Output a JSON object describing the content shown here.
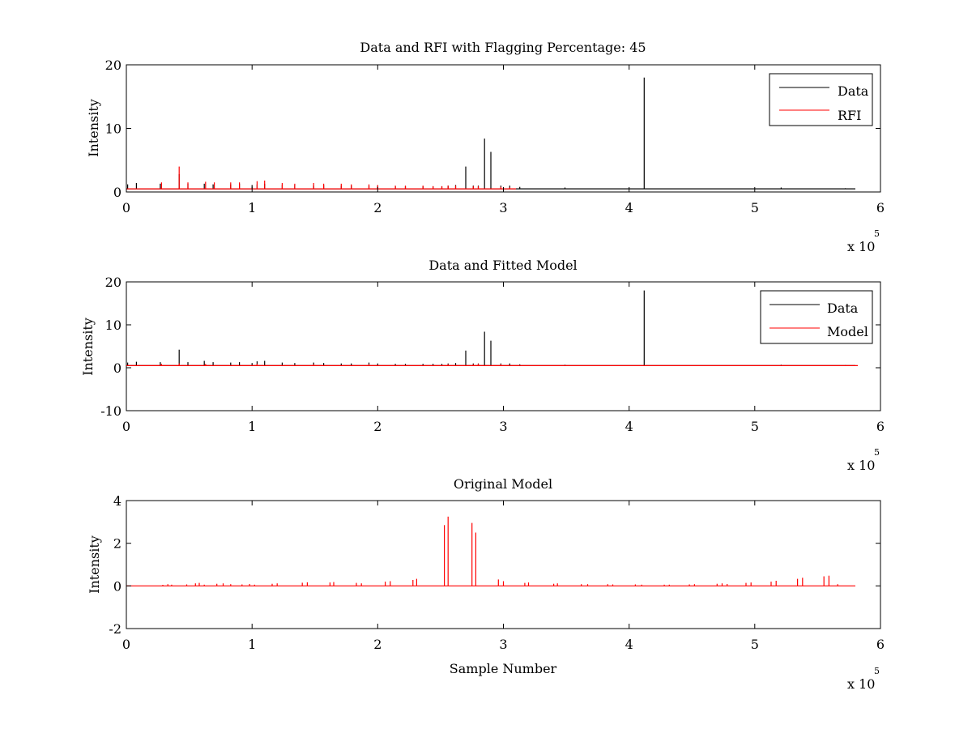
{
  "chart_data": [
    {
      "type": "line",
      "title": "Data and RFI with Flagging Percentage: 45",
      "xlabel": "",
      "ylabel": "Intensity",
      "xlim": [
        0,
        600000
      ],
      "ylim": [
        0,
        20
      ],
      "xticks": [
        0,
        100000,
        200000,
        300000,
        400000,
        500000,
        600000
      ],
      "xtick_labels": [
        "0",
        "1",
        "2",
        "3",
        "4",
        "5",
        "6"
      ],
      "yticks": [
        0,
        10,
        20
      ],
      "ytick_labels": [
        "0",
        "10",
        "20"
      ],
      "x_multiplier": {
        "base": "x 10",
        "exponent": "5"
      },
      "legend_position": "top-right",
      "grid": false,
      "baseline": 0.5,
      "series": [
        {
          "name": "Data",
          "color": "#000000",
          "peaks": [
            [
              1000,
              1.2
            ],
            [
              8000,
              1.4
            ],
            [
              27000,
              1.3
            ],
            [
              42000,
              2.8
            ],
            [
              49000,
              1.3
            ],
            [
              62000,
              1.3
            ],
            [
              69000,
              1.2
            ],
            [
              83000,
              1.2
            ],
            [
              90000,
              1.3
            ],
            [
              100000,
              1.1
            ],
            [
              104000,
              1.2
            ],
            [
              110000,
              1.3
            ],
            [
              124000,
              1.1
            ],
            [
              134000,
              1.1
            ],
            [
              149000,
              1.0
            ],
            [
              157000,
              1.1
            ],
            [
              171000,
              1.0
            ],
            [
              179000,
              1.0
            ],
            [
              193000,
              1.0
            ],
            [
              200000,
              1.0
            ],
            [
              214000,
              0.9
            ],
            [
              222000,
              0.9
            ],
            [
              236000,
              0.9
            ],
            [
              244000,
              0.9
            ],
            [
              251000,
              0.9
            ],
            [
              256000,
              1.0
            ],
            [
              262000,
              1.1
            ],
            [
              270000,
              4.0
            ],
            [
              276000,
              1.0
            ],
            [
              280000,
              1.0
            ],
            [
              285000,
              8.4
            ],
            [
              290000,
              6.3
            ],
            [
              298000,
              1.0
            ],
            [
              305000,
              1.0
            ],
            [
              313000,
              0.8
            ],
            [
              349000,
              0.7
            ],
            [
              412000,
              18.0
            ],
            [
              521000,
              0.7
            ],
            [
              572000,
              0.6
            ]
          ]
        },
        {
          "name": "RFI",
          "color": "#ff0000",
          "peaks": [
            [
              28000,
              1.5
            ],
            [
              42000,
              4.0
            ],
            [
              49000,
              1.5
            ],
            [
              63000,
              1.6
            ],
            [
              70000,
              1.5
            ],
            [
              83000,
              1.5
            ],
            [
              90000,
              1.5
            ],
            [
              104000,
              1.7
            ],
            [
              110000,
              1.8
            ],
            [
              124000,
              1.4
            ],
            [
              134000,
              1.3
            ],
            [
              149000,
              1.4
            ],
            [
              157000,
              1.3
            ],
            [
              171000,
              1.3
            ],
            [
              179000,
              1.2
            ],
            [
              193000,
              1.2
            ],
            [
              200000,
              1.1
            ],
            [
              214000,
              1.0
            ],
            [
              222000,
              1.0
            ],
            [
              236000,
              1.0
            ],
            [
              244000,
              0.9
            ],
            [
              251000,
              0.9
            ],
            [
              256000,
              1.0
            ],
            [
              262000,
              1.0
            ],
            [
              276000,
              0.9
            ],
            [
              280000,
              0.9
            ],
            [
              298000,
              0.8
            ],
            [
              305000,
              0.7
            ]
          ],
          "x_end": 310000
        }
      ]
    },
    {
      "type": "line",
      "title": "Data and Fitted Model",
      "xlabel": "",
      "ylabel": "Intensity",
      "xlim": [
        0,
        600000
      ],
      "ylim": [
        -10,
        20
      ],
      "xticks": [
        0,
        100000,
        200000,
        300000,
        400000,
        500000,
        600000
      ],
      "xtick_labels": [
        "0",
        "1",
        "2",
        "3",
        "4",
        "5",
        "6"
      ],
      "yticks": [
        -10,
        0,
        10,
        20
      ],
      "ytick_labels": [
        "-10",
        "0",
        "10",
        "20"
      ],
      "x_multiplier": {
        "base": "x 10",
        "exponent": "5"
      },
      "legend_position": "top-right",
      "grid": false,
      "baseline": 0.5,
      "series": [
        {
          "name": "Data",
          "color": "#000000",
          "peaks": [
            [
              1000,
              1.2
            ],
            [
              8000,
              1.4
            ],
            [
              27000,
              1.3
            ],
            [
              42000,
              4.2
            ],
            [
              49000,
              1.3
            ],
            [
              62000,
              1.6
            ],
            [
              69000,
              1.3
            ],
            [
              83000,
              1.2
            ],
            [
              90000,
              1.3
            ],
            [
              100000,
              1.1
            ],
            [
              104000,
              1.5
            ],
            [
              110000,
              1.6
            ],
            [
              124000,
              1.2
            ],
            [
              134000,
              1.1
            ],
            [
              149000,
              1.2
            ],
            [
              157000,
              1.1
            ],
            [
              171000,
              1.0
            ],
            [
              179000,
              1.0
            ],
            [
              193000,
              1.2
            ],
            [
              200000,
              1.0
            ],
            [
              214000,
              0.9
            ],
            [
              222000,
              0.9
            ],
            [
              236000,
              0.9
            ],
            [
              244000,
              0.9
            ],
            [
              251000,
              0.9
            ],
            [
              256000,
              1.0
            ],
            [
              262000,
              1.1
            ],
            [
              270000,
              4.0
            ],
            [
              276000,
              1.0
            ],
            [
              280000,
              1.0
            ],
            [
              285000,
              8.4
            ],
            [
              290000,
              6.3
            ],
            [
              298000,
              1.0
            ],
            [
              305000,
              1.0
            ],
            [
              313000,
              0.8
            ],
            [
              349000,
              0.7
            ],
            [
              412000,
              18.0
            ],
            [
              521000,
              0.7
            ],
            [
              572000,
              0.6
            ]
          ]
        },
        {
          "name": "Model",
          "color": "#ff0000",
          "peaks": [
            [
              28000,
              0.9
            ],
            [
              42000,
              1.0
            ],
            [
              63000,
              0.9
            ],
            [
              104000,
              0.9
            ],
            [
              149000,
              0.8
            ],
            [
              193000,
              0.8
            ],
            [
              256000,
              0.8
            ],
            [
              276000,
              0.8
            ],
            [
              280000,
              0.9
            ],
            [
              298000,
              0.8
            ]
          ],
          "x_end": 582000
        }
      ]
    },
    {
      "type": "line",
      "title": "Original Model",
      "xlabel": "Sample Number",
      "ylabel": "Intensity",
      "xlim": [
        0,
        600000
      ],
      "ylim": [
        -2,
        4
      ],
      "xticks": [
        0,
        100000,
        200000,
        300000,
        400000,
        500000,
        600000
      ],
      "xtick_labels": [
        "0",
        "1",
        "2",
        "3",
        "4",
        "5",
        "6"
      ],
      "yticks": [
        -2,
        0,
        2,
        4
      ],
      "ytick_labels": [
        "-2",
        "0",
        "2",
        "4"
      ],
      "x_multiplier": {
        "base": "x 10",
        "exponent": "5"
      },
      "grid": false,
      "baseline": 0,
      "series": [
        {
          "color": "#ff0000",
          "peaks": [
            [
              29000,
              0.05
            ],
            [
              33000,
              0.08
            ],
            [
              36000,
              0.06
            ],
            [
              48000,
              0.07
            ],
            [
              55000,
              0.12
            ],
            [
              58000,
              0.14
            ],
            [
              62000,
              0.06
            ],
            [
              72000,
              0.1
            ],
            [
              77000,
              0.12
            ],
            [
              83000,
              0.08
            ],
            [
              92000,
              0.07
            ],
            [
              98000,
              0.09
            ],
            [
              102000,
              0.06
            ],
            [
              116000,
              0.1
            ],
            [
              120000,
              0.12
            ],
            [
              140000,
              0.15
            ],
            [
              144000,
              0.17
            ],
            [
              162000,
              0.16
            ],
            [
              165000,
              0.18
            ],
            [
              183000,
              0.14
            ],
            [
              187000,
              0.12
            ],
            [
              206000,
              0.2
            ],
            [
              210000,
              0.22
            ],
            [
              228000,
              0.28
            ],
            [
              231000,
              0.33
            ],
            [
              253000,
              2.85
            ],
            [
              256000,
              3.25
            ],
            [
              275000,
              2.95
            ],
            [
              278000,
              2.5
            ],
            [
              296000,
              0.3
            ],
            [
              300000,
              0.22
            ],
            [
              317000,
              0.14
            ],
            [
              320000,
              0.16
            ],
            [
              340000,
              0.1
            ],
            [
              343000,
              0.12
            ],
            [
              362000,
              0.08
            ],
            [
              367000,
              0.08
            ],
            [
              383000,
              0.08
            ],
            [
              387000,
              0.07
            ],
            [
              405000,
              0.07
            ],
            [
              410000,
              0.06
            ],
            [
              428000,
              0.06
            ],
            [
              432000,
              0.06
            ],
            [
              448000,
              0.07
            ],
            [
              452000,
              0.08
            ],
            [
              470000,
              0.1
            ],
            [
              474000,
              0.12
            ],
            [
              478000,
              0.09
            ],
            [
              493000,
              0.14
            ],
            [
              497000,
              0.16
            ],
            [
              513000,
              0.2
            ],
            [
              517000,
              0.24
            ],
            [
              534000,
              0.33
            ],
            [
              538000,
              0.38
            ],
            [
              555000,
              0.45
            ],
            [
              559000,
              0.48
            ],
            [
              566000,
              0.08
            ]
          ],
          "x_end": 580000
        }
      ]
    }
  ]
}
